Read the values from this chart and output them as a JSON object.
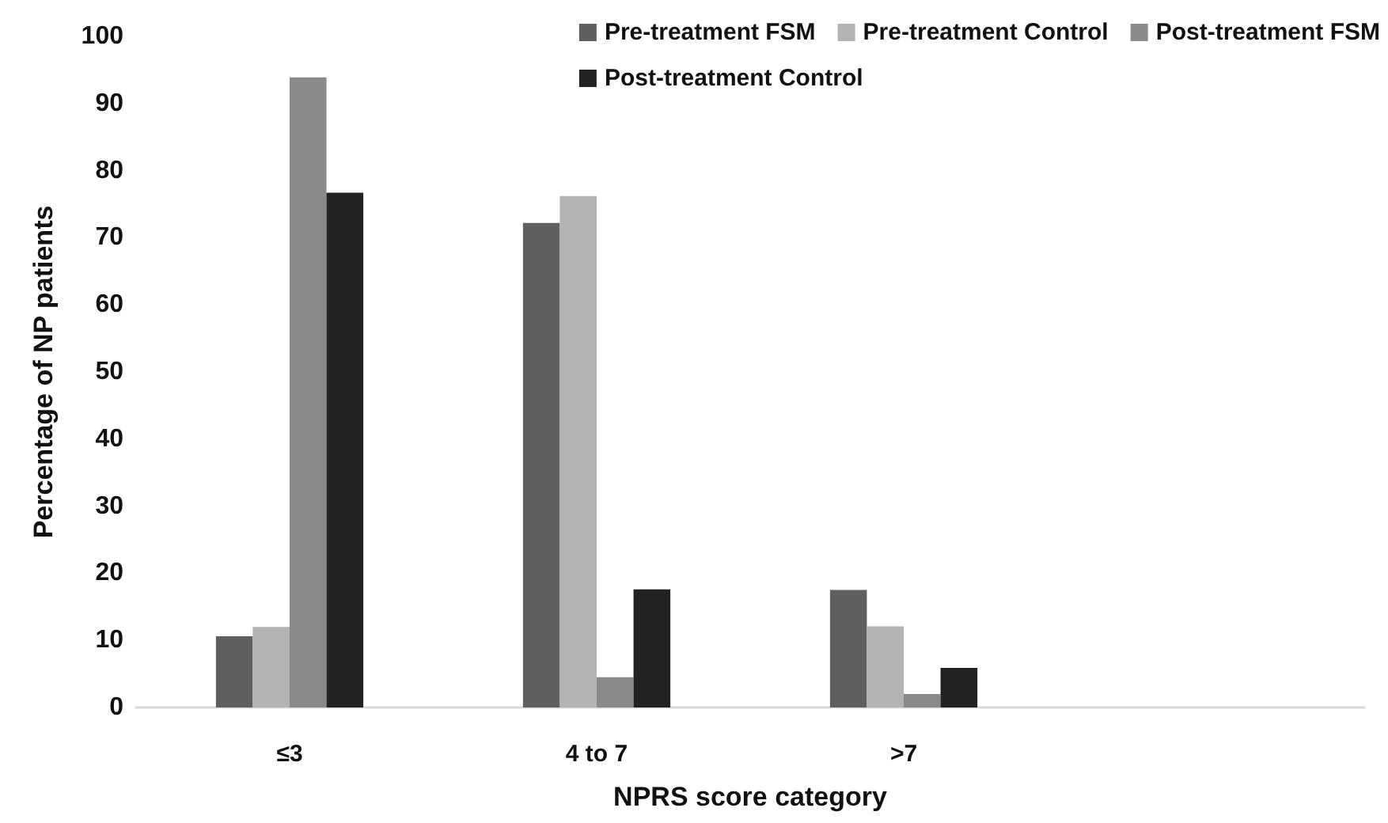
{
  "chart_data": {
    "type": "bar",
    "xlabel": "NPRS score category",
    "ylabel": "Percentage of NP patients",
    "categories": [
      "≤3",
      "4 to 7",
      ">7",
      null
    ],
    "series": [
      {
        "name": "Pre-treatment FSM",
        "color": "#5f5f5f",
        "values": [
          10.6,
          72.2,
          17.5,
          null
        ]
      },
      {
        "name": "Pre-treatment Control",
        "color": "#b3b3b3",
        "values": [
          12.0,
          76.2,
          12.1,
          null
        ]
      },
      {
        "name": "Post-treatment FSM",
        "color": "#8a8a8a",
        "values": [
          93.9,
          4.5,
          2.0,
          null
        ]
      },
      {
        "name": "Post-treatment Control",
        "color": "#222222",
        "values": [
          76.7,
          17.6,
          5.9,
          null
        ]
      }
    ],
    "ylim": [
      0,
      100
    ],
    "yticks": [
      0,
      10,
      20,
      30,
      40,
      50,
      60,
      70,
      80,
      90,
      100
    ],
    "grid": false,
    "legend": "top right"
  }
}
